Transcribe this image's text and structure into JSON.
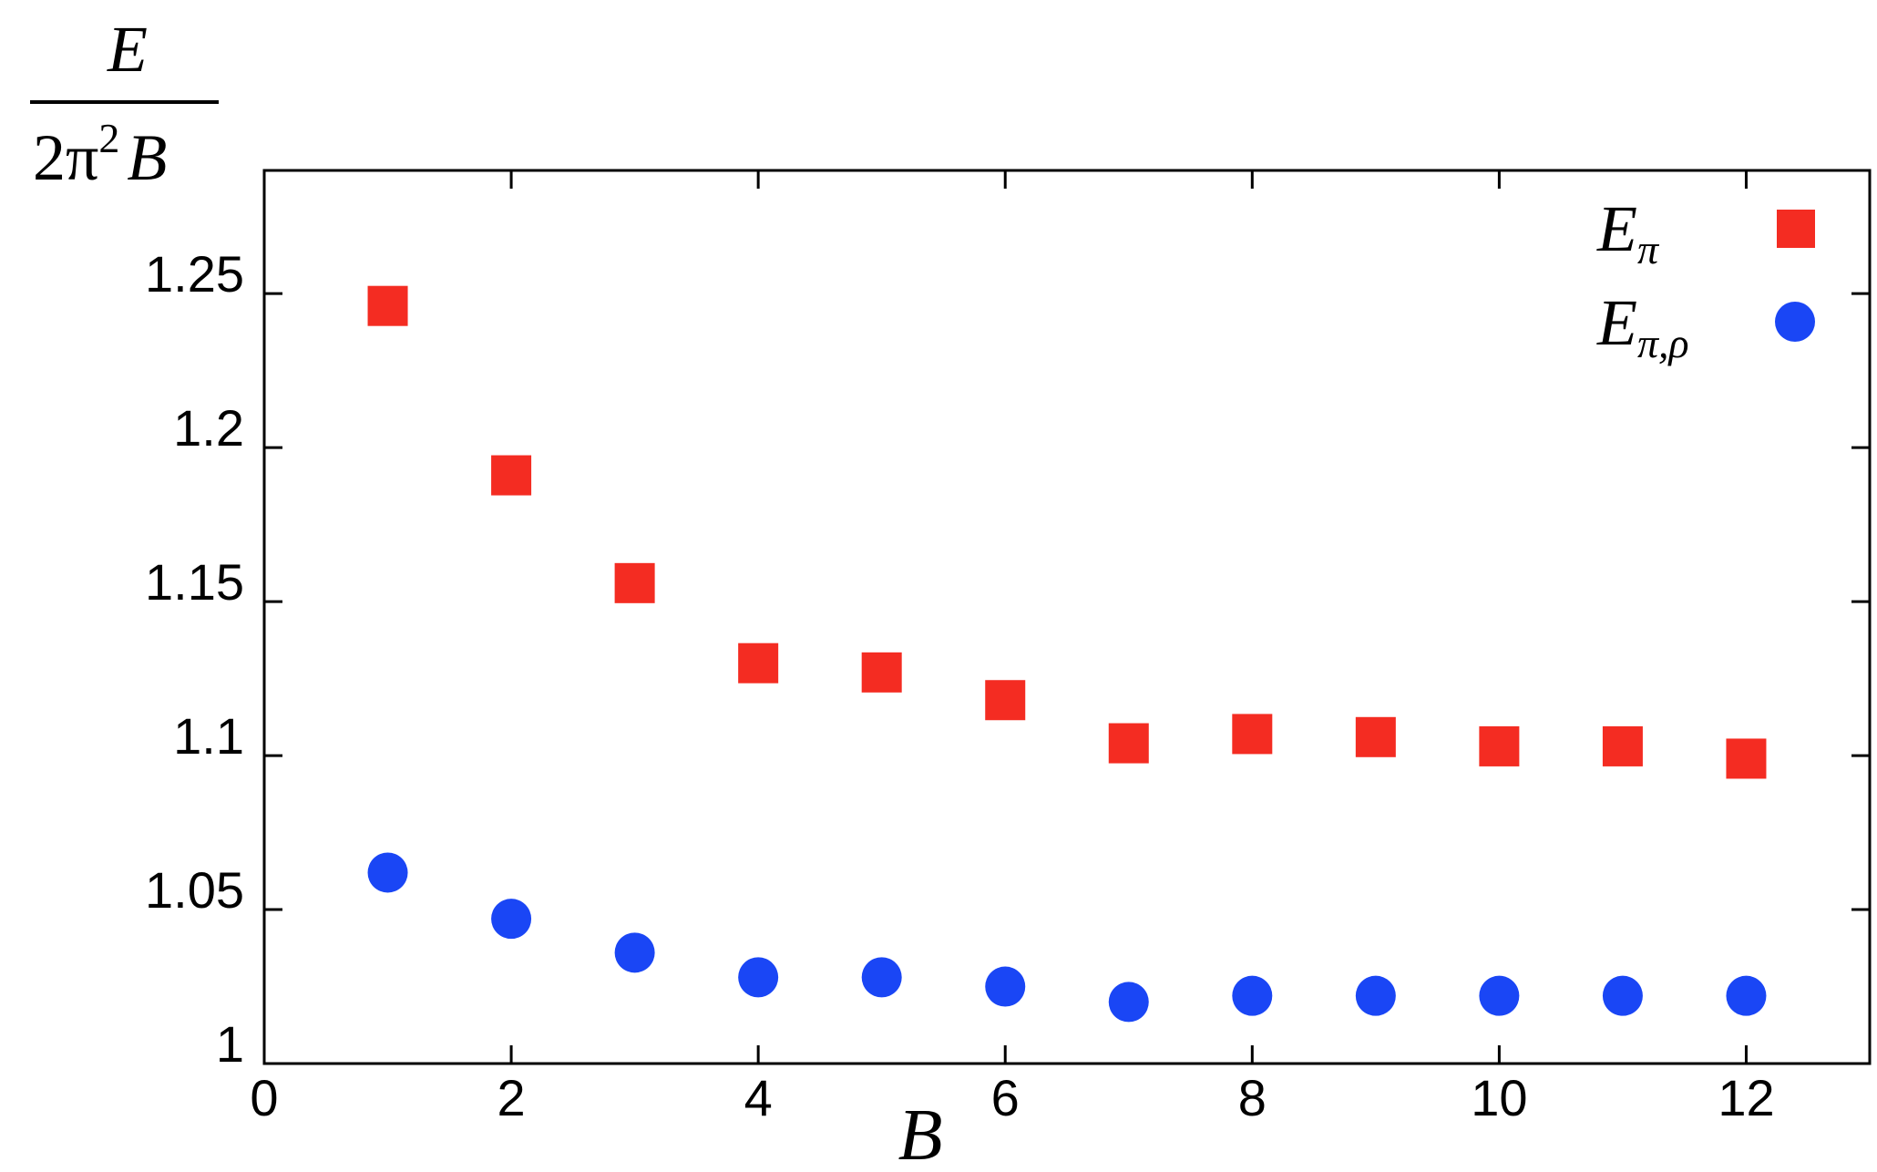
{
  "chart_data": {
    "type": "scatter",
    "title": "",
    "xlabel": "B",
    "ylabel": {
      "numerator": "E",
      "denominator_lead": "2π",
      "denominator_power": "2",
      "denominator_tail": "B"
    },
    "xlim": [
      0,
      13
    ],
    "ylim": [
      1,
      1.29
    ],
    "xticks": [
      0,
      2,
      4,
      6,
      8,
      10,
      12
    ],
    "xtick_labels": [
      "0",
      "2",
      "4",
      "6",
      "8",
      "10",
      "12"
    ],
    "yticks": [
      1,
      1.05,
      1.1,
      1.15,
      1.2,
      1.25
    ],
    "ytick_labels": [
      "1",
      "1.05",
      "1.1",
      "1.15",
      "1.2",
      "1.25"
    ],
    "grid": false,
    "legend_position": "top-right",
    "x": [
      1,
      2,
      3,
      4,
      5,
      6,
      7,
      8,
      9,
      10,
      11,
      12
    ],
    "series": [
      {
        "name": "E_π",
        "name_base": "E",
        "name_sub": "π",
        "marker": "square",
        "color": "#f42c22",
        "values": [
          1.246,
          1.191,
          1.156,
          1.13,
          1.127,
          1.118,
          1.104,
          1.107,
          1.106,
          1.103,
          1.103,
          1.099
        ]
      },
      {
        "name": "E_π,ρ",
        "name_base": "E",
        "name_sub": "π,ρ",
        "marker": "circle",
        "color": "#1a46f5",
        "values": [
          1.062,
          1.047,
          1.036,
          1.028,
          1.028,
          1.025,
          1.02,
          1.022,
          1.022,
          1.022,
          1.022,
          1.022
        ]
      }
    ]
  }
}
